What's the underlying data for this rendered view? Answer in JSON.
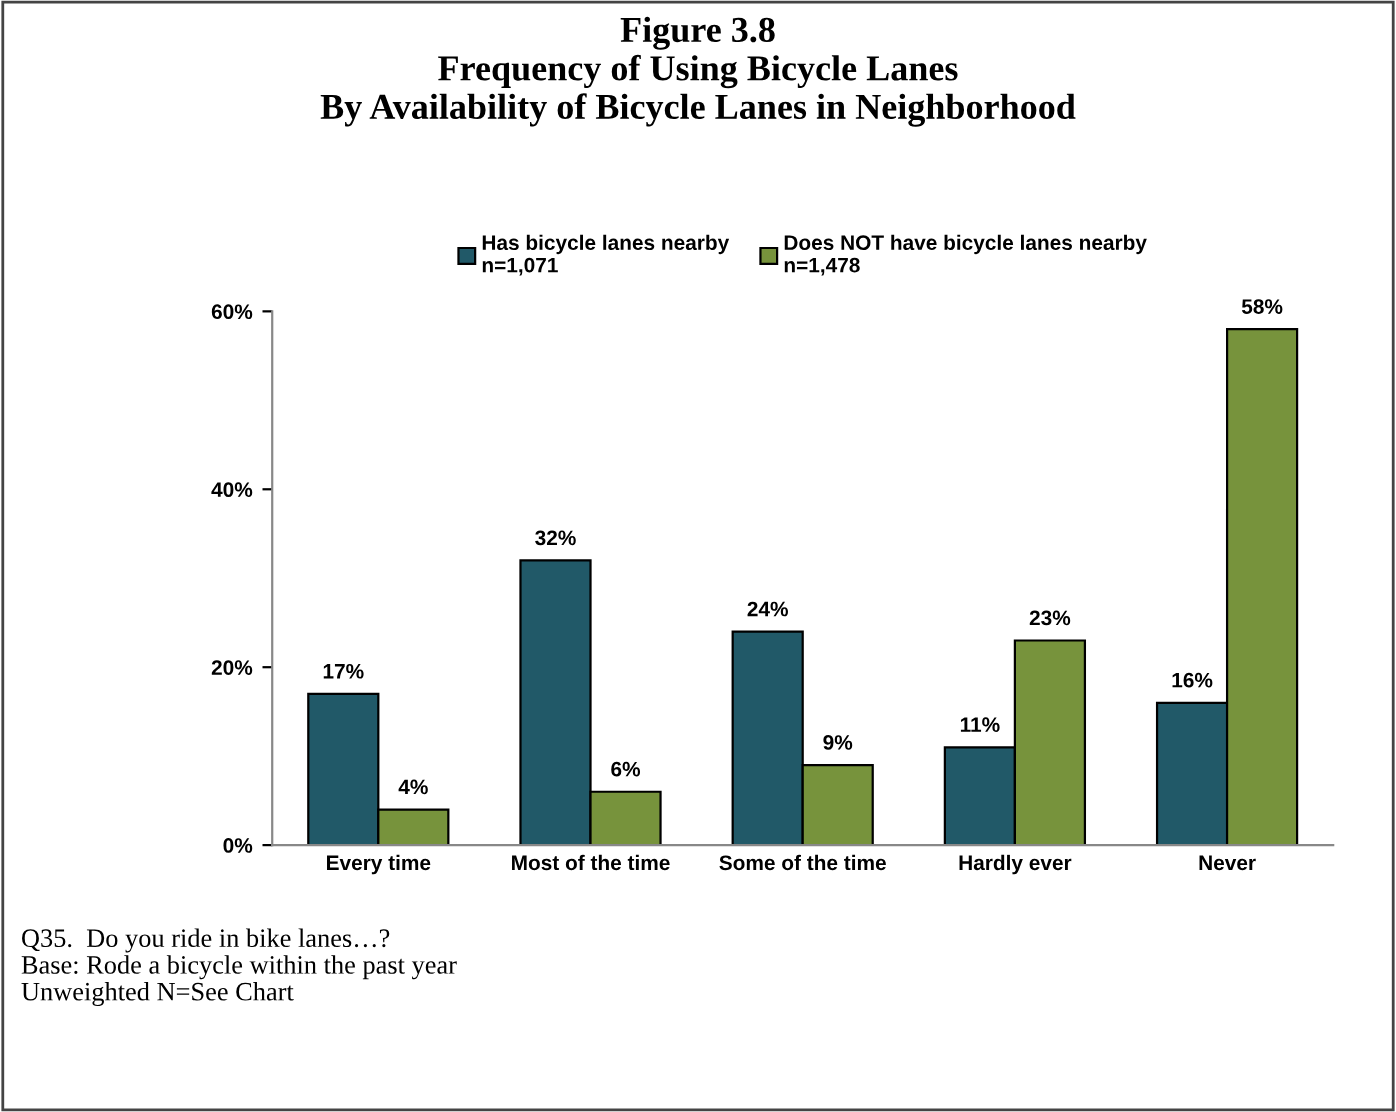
{
  "chart_data": {
    "type": "bar",
    "title": "Figure 3.8\nFrequency of Using Bicycle Lanes\nBy Availability of Bicycle Lanes in Neighborhood",
    "categories": [
      "Every time",
      "Most of the time",
      "Some of the time",
      "Hardly ever",
      "Never"
    ],
    "series": [
      {
        "name": "Has bicycle lanes nearby\nn=1,071",
        "color": "#215968",
        "values": [
          17,
          32,
          24,
          11,
          16
        ],
        "value_labels": [
          "17%",
          "32%",
          "24%",
          "11%",
          "16%"
        ]
      },
      {
        "name": "Does NOT have bicycle lanes nearby\nn=1,478",
        "color": "#77933c",
        "values": [
          4,
          6,
          9,
          23,
          58
        ],
        "value_labels": [
          "4%",
          "6%",
          "9%",
          "23%",
          "58%"
        ]
      }
    ],
    "ylim": [
      0,
      60
    ],
    "yticks": [
      {
        "value": 0,
        "label": "0%"
      },
      {
        "value": 20,
        "label": "20%"
      },
      {
        "value": 40,
        "label": "40%"
      },
      {
        "value": 60,
        "label": "60%"
      }
    ],
    "grid": false,
    "legend": "top",
    "annotations": [
      "Q35.  Do you ride in bike lanes…?\nBase: Rode a bicycle within the past year\nUnweighted N=See Chart"
    ]
  }
}
